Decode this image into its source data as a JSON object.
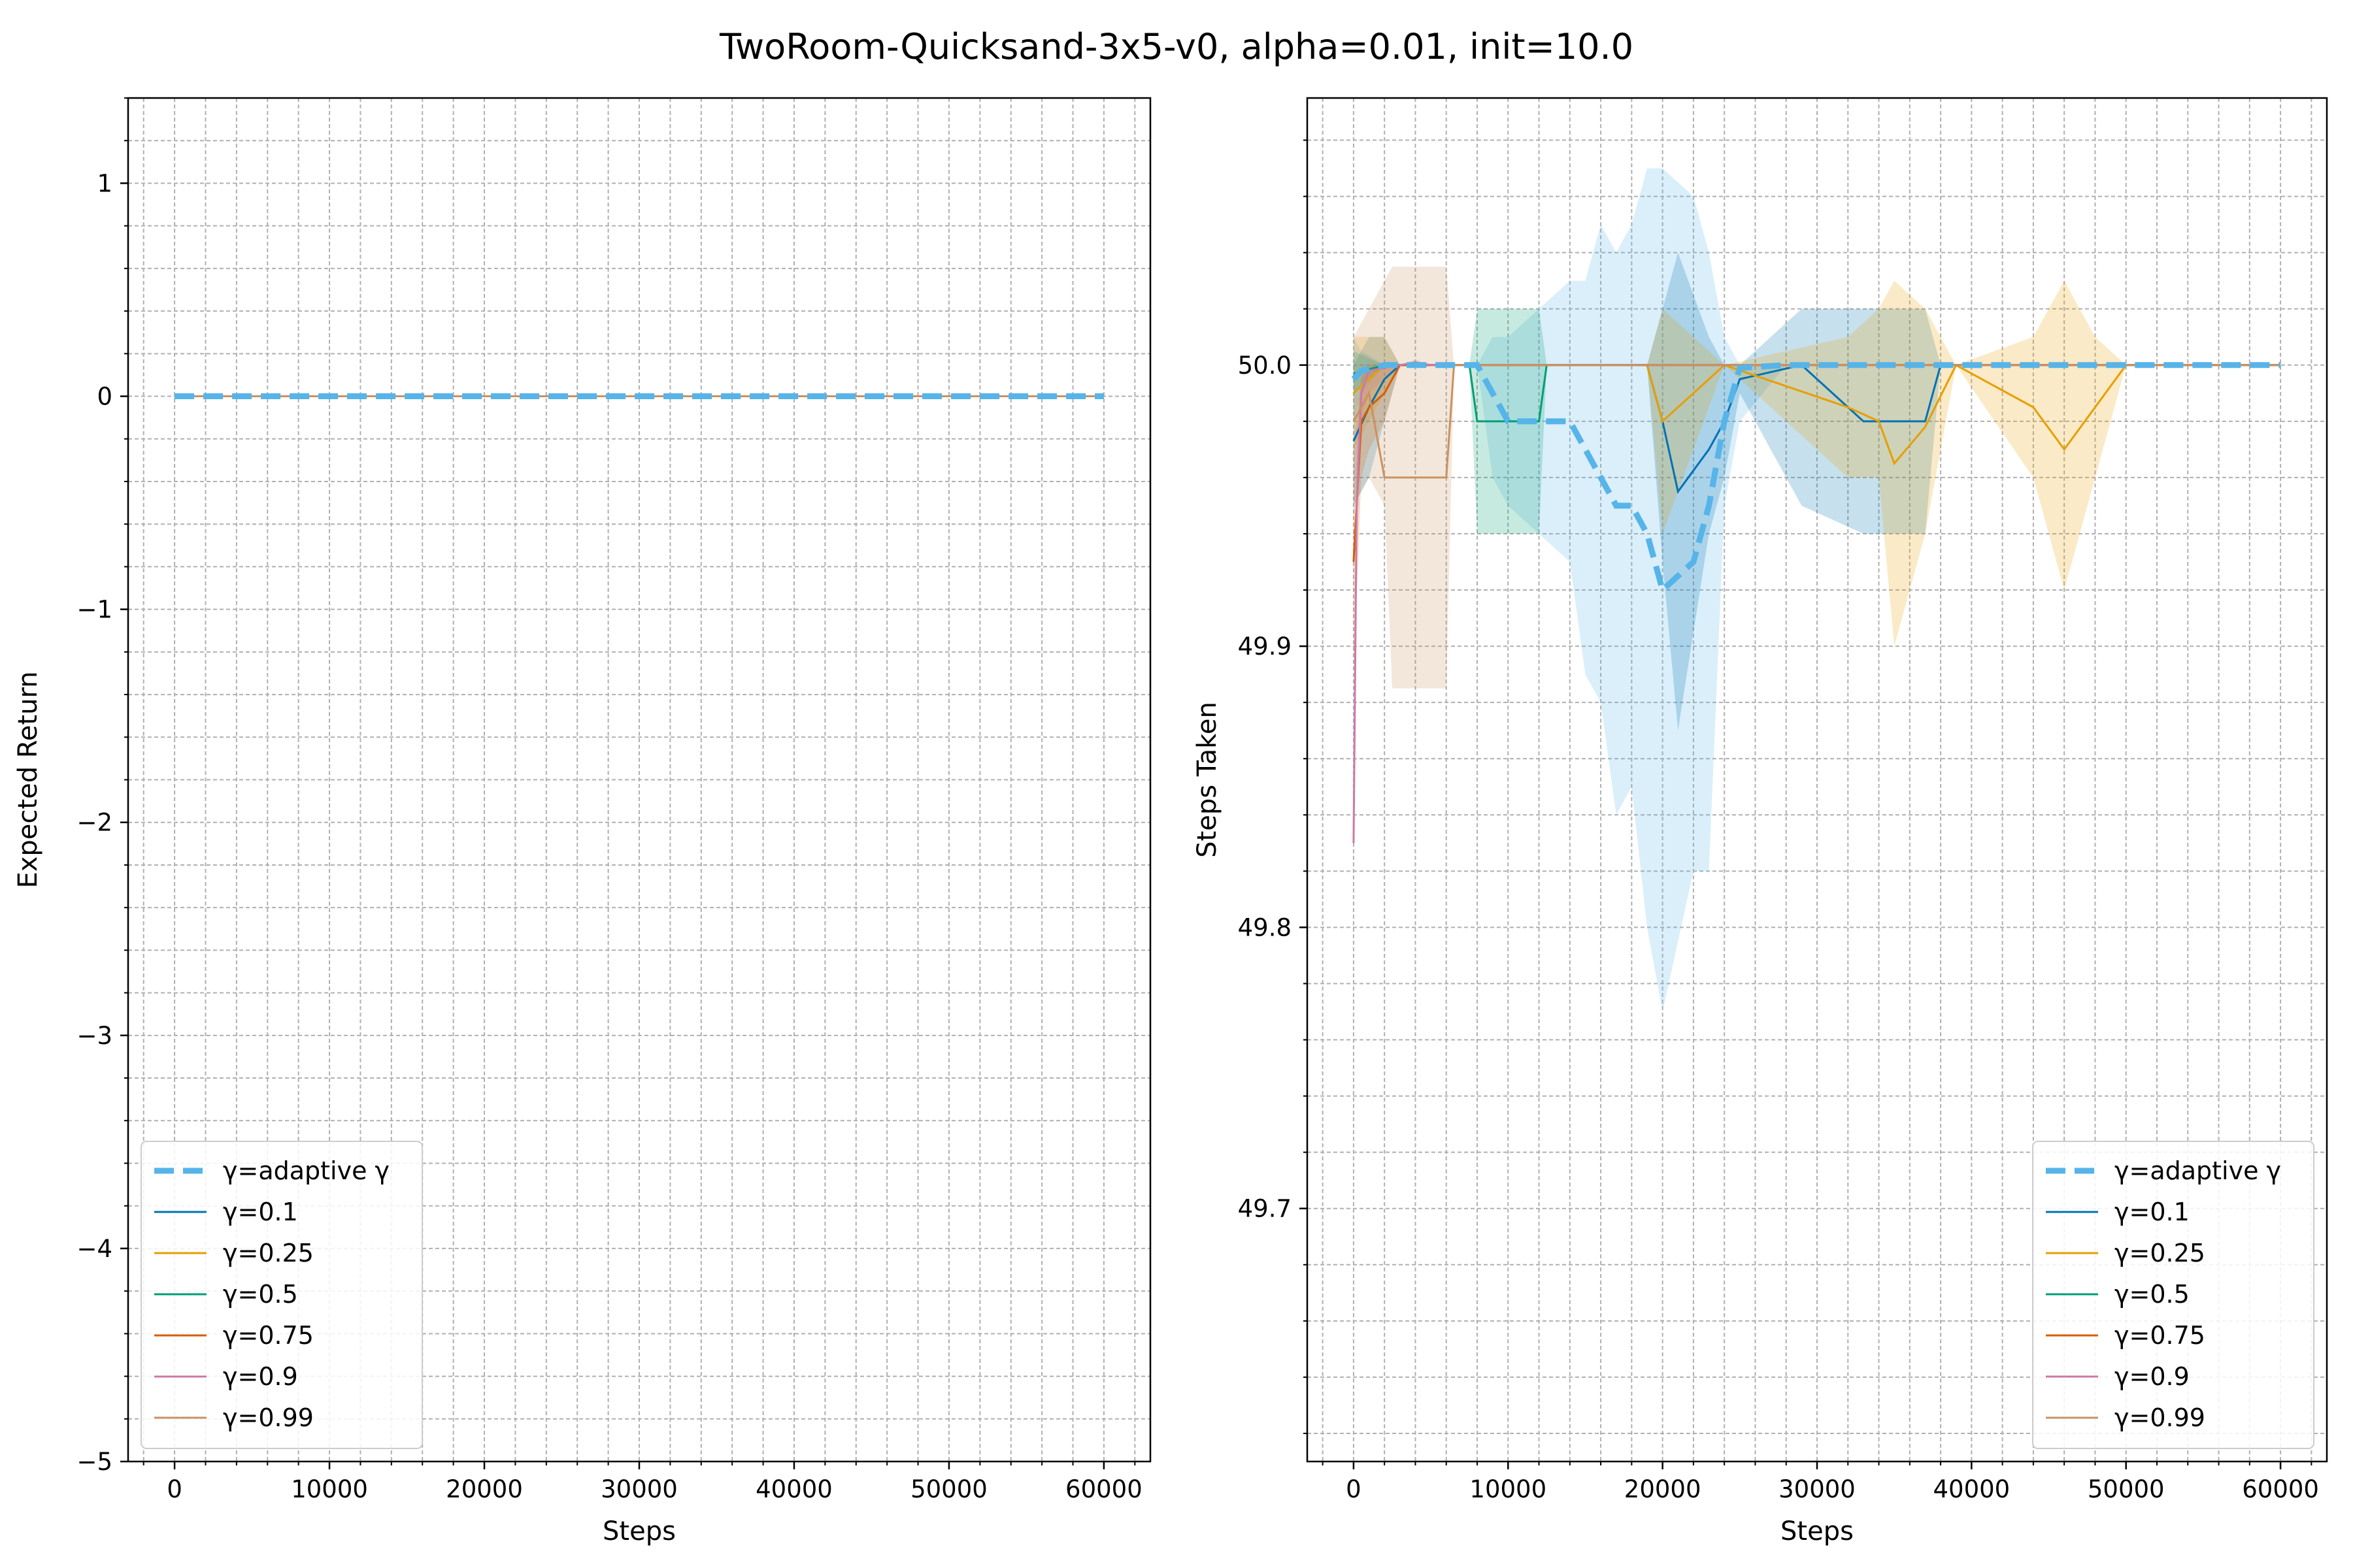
{
  "figure": {
    "title": "TwoRoom-Quicksand-3x5-v0, alpha=0.01, init=10.0"
  },
  "legend": {
    "entries": [
      {
        "label": "γ=adaptive γ",
        "color": "#56b4e9",
        "dashed": true
      },
      {
        "label": "γ=0.1",
        "color": "#0072b2",
        "dashed": false
      },
      {
        "label": "γ=0.25",
        "color": "#e69f00",
        "dashed": false
      },
      {
        "label": "γ=0.5",
        "color": "#009e73",
        "dashed": false
      },
      {
        "label": "γ=0.75",
        "color": "#d55e00",
        "dashed": false
      },
      {
        "label": "γ=0.9",
        "color": "#cc79a7",
        "dashed": false
      },
      {
        "label": "γ=0.99",
        "color": "#ca9161",
        "dashed": false
      }
    ]
  },
  "chart_data": [
    {
      "type": "line",
      "xlabel": "Steps",
      "ylabel": "Expected Return",
      "xlim": [
        -3000,
        63000
      ],
      "ylim": [
        -5,
        1.4
      ],
      "xticks": [
        0,
        10000,
        20000,
        30000,
        40000,
        50000,
        60000
      ],
      "yticks": [
        1,
        0,
        -1,
        -2,
        -3,
        -4,
        -5
      ],
      "ytick_labels": [
        "1",
        "0",
        "−1",
        "−2",
        "−3",
        "−4",
        "−5"
      ],
      "grid": true,
      "legend_position": "lower-left",
      "series": [
        {
          "name": "γ=adaptive γ",
          "x": [
            0,
            60000
          ],
          "y": [
            0,
            0
          ]
        },
        {
          "name": "γ=0.1",
          "x": [
            0,
            60000
          ],
          "y": [
            0,
            0
          ]
        },
        {
          "name": "γ=0.25",
          "x": [
            0,
            60000
          ],
          "y": [
            0,
            0
          ]
        },
        {
          "name": "γ=0.5",
          "x": [
            0,
            60000
          ],
          "y": [
            0,
            0
          ]
        },
        {
          "name": "γ=0.75",
          "x": [
            0,
            60000
          ],
          "y": [
            0,
            0
          ]
        },
        {
          "name": "γ=0.9",
          "x": [
            0,
            60000
          ],
          "y": [
            0,
            0
          ]
        },
        {
          "name": "γ=0.99",
          "x": [
            0,
            60000
          ],
          "y": [
            0,
            0
          ]
        }
      ]
    },
    {
      "type": "line",
      "xlabel": "Steps",
      "ylabel": "Steps Taken",
      "xlim": [
        -3000,
        63000
      ],
      "ylim": [
        49.61,
        50.095
      ],
      "xticks": [
        0,
        10000,
        20000,
        30000,
        40000,
        50000,
        60000
      ],
      "yticks": [
        50.0,
        49.9,
        49.8,
        49.7
      ],
      "ytick_labels": [
        "50.0",
        "49.9",
        "49.8",
        "49.7"
      ],
      "grid": true,
      "legend_position": "lower-right",
      "series": [
        {
          "name": "γ=adaptive γ",
          "x": [
            0,
            500,
            2000,
            4000,
            8000,
            9000,
            10000,
            12000,
            14000,
            15000,
            16000,
            17000,
            18000,
            19000,
            20000,
            22000,
            23000,
            24000,
            25000,
            28000,
            60000
          ],
          "y": [
            49.995,
            49.998,
            50.0,
            50.0,
            50.0,
            49.99,
            49.98,
            49.98,
            49.98,
            49.97,
            49.96,
            49.95,
            49.95,
            49.94,
            49.92,
            49.93,
            49.95,
            49.98,
            49.999,
            50.0,
            50.0
          ],
          "band_lo": [
            49.98,
            49.99,
            50.0,
            50.0,
            50.0,
            49.96,
            49.95,
            49.94,
            49.93,
            49.89,
            49.88,
            49.84,
            49.85,
            49.8,
            49.77,
            49.82,
            49.82,
            49.95,
            49.98,
            50.0,
            50.0
          ],
          "band_hi": [
            50.01,
            50.005,
            50.0,
            50.0,
            50.0,
            50.01,
            50.01,
            50.02,
            50.03,
            50.03,
            50.05,
            50.04,
            50.05,
            50.07,
            50.07,
            50.06,
            50.04,
            50.01,
            50.0,
            50.0,
            50.0
          ]
        },
        {
          "name": "γ=0.1",
          "x": [
            0,
            1000,
            2000,
            3000,
            19000,
            20000,
            21000,
            23000,
            24000,
            25000,
            29000,
            33000,
            37000,
            38000,
            60000
          ],
          "y": [
            49.973,
            49.985,
            49.995,
            50.0,
            50.0,
            49.98,
            49.955,
            49.97,
            49.98,
            49.995,
            50.0,
            49.98,
            49.98,
            50.0,
            50.0
          ],
          "band_lo": [
            49.95,
            49.96,
            49.98,
            50.0,
            50.0,
            49.93,
            49.87,
            49.94,
            49.96,
            49.99,
            49.95,
            49.94,
            49.94,
            50.0,
            50.0
          ],
          "band_hi": [
            50.0,
            50.01,
            50.01,
            50.0,
            50.0,
            50.02,
            50.04,
            50.01,
            50.0,
            50.0,
            50.02,
            50.02,
            50.02,
            50.0,
            50.0
          ]
        },
        {
          "name": "γ=0.25",
          "x": [
            0,
            2000,
            3000,
            19000,
            20000,
            24000,
            32000,
            34000,
            35000,
            37000,
            39000,
            44000,
            46000,
            48000,
            50000,
            60000
          ],
          "y": [
            49.99,
            50.0,
            50.0,
            50.0,
            49.98,
            50.0,
            49.985,
            49.98,
            49.965,
            49.978,
            50.0,
            49.985,
            49.97,
            49.985,
            50.0,
            50.0
          ],
          "band_lo": [
            49.97,
            49.99,
            50.0,
            50.0,
            49.94,
            50.0,
            49.96,
            49.96,
            49.9,
            49.94,
            50.0,
            49.96,
            49.92,
            49.96,
            50.0,
            50.0
          ],
          "band_hi": [
            50.01,
            50.01,
            50.0,
            50.0,
            50.02,
            50.0,
            50.01,
            50.02,
            50.03,
            50.02,
            50.0,
            50.01,
            50.03,
            50.01,
            50.0,
            50.0
          ]
        },
        {
          "name": "γ=0.5",
          "x": [
            0,
            2000,
            3000,
            7500,
            8000,
            12000,
            12500,
            60000
          ],
          "y": [
            49.997,
            50.0,
            50.0,
            50.0,
            49.98,
            49.98,
            50.0,
            50.0
          ],
          "band_lo": [
            49.99,
            50.0,
            50.0,
            50.0,
            49.94,
            49.94,
            50.0,
            50.0
          ],
          "band_hi": [
            50.005,
            50.0,
            50.0,
            50.0,
            50.02,
            50.02,
            50.0,
            50.0
          ]
        },
        {
          "name": "γ=0.75",
          "x": [
            0,
            500,
            1000,
            2000,
            2500,
            3000,
            60000
          ],
          "y": [
            49.93,
            49.98,
            49.985,
            49.99,
            49.995,
            50.0,
            50.0
          ],
          "band_lo": [
            49.89,
            49.96,
            49.97,
            49.98,
            49.99,
            50.0,
            50.0
          ],
          "band_hi": [
            49.97,
            49.995,
            50.0,
            50.0,
            50.0,
            50.0,
            50.0
          ]
        },
        {
          "name": "γ=0.9",
          "x": [
            0,
            200,
            500,
            1000,
            3000,
            4000,
            5000,
            60000
          ],
          "y": [
            49.83,
            49.95,
            49.99,
            49.998,
            50.0,
            50.001,
            50.0,
            50.0
          ],
          "band_lo": [
            49.82,
            49.93,
            49.98,
            49.99,
            50.0,
            50.0,
            50.0,
            50.0
          ],
          "band_hi": [
            49.85,
            49.97,
            50.0,
            50.0,
            50.0,
            50.002,
            50.0,
            50.0
          ]
        },
        {
          "name": "γ=0.99",
          "x": [
            0,
            1000,
            2000,
            2500,
            6000,
            6500,
            60000
          ],
          "y": [
            49.98,
            49.99,
            49.96,
            49.96,
            49.96,
            50.0,
            50.0
          ],
          "band_lo": [
            49.95,
            49.96,
            49.95,
            49.885,
            49.885,
            50.0,
            50.0
          ],
          "band_hi": [
            50.01,
            50.02,
            50.03,
            50.035,
            50.035,
            50.0,
            50.0
          ]
        }
      ]
    }
  ]
}
